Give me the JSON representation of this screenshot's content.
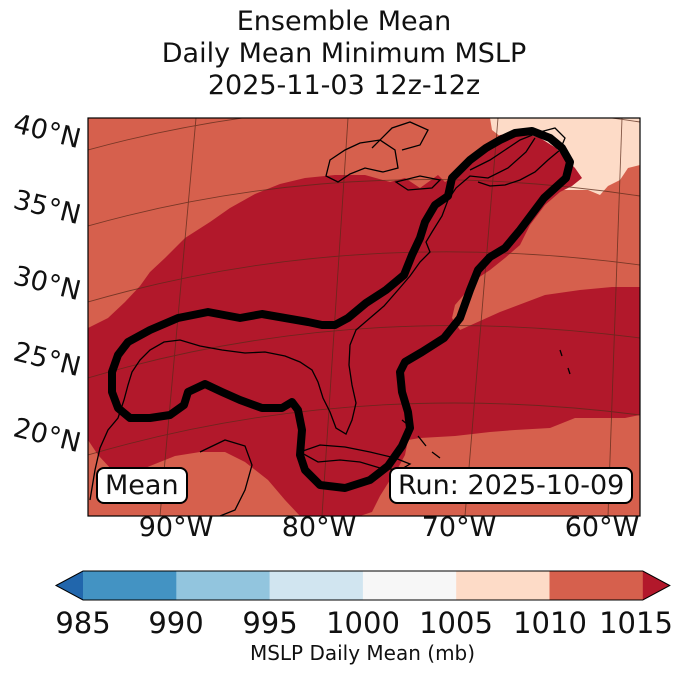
{
  "title": {
    "line1": "Ensemble Mean",
    "line2": "Daily Mean Minimum MSLP",
    "line3": "2025-11-03 12z-12z"
  },
  "map": {
    "lat_labels": [
      "40°N",
      "35°N",
      "30°N",
      "25°N",
      "20°N"
    ],
    "lon_labels": [
      "90°W",
      "80°W",
      "70°W",
      "60°W"
    ],
    "legend_box": "Mean",
    "run_box": "Run: 2025-10-09",
    "colors": {
      "ocean_fill": "#d6604d",
      "low_fill": "#b2182b",
      "pale_fill": "#fddbc7",
      "contour": "#000000"
    }
  },
  "colorbar": {
    "ticks": [
      "985",
      "990",
      "995",
      "1000",
      "1005",
      "1010",
      "1015"
    ],
    "colors": [
      "#2166ac",
      "#4393c3",
      "#92c5de",
      "#d1e5f0",
      "#f7f7f7",
      "#fddbc7",
      "#d6604d",
      "#b2182b"
    ],
    "label": "MSLP Daily Mean (mb)"
  }
}
